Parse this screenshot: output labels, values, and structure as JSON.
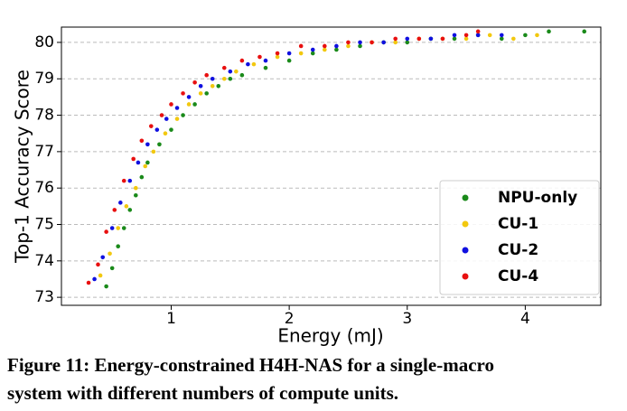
{
  "chart_data": {
    "type": "scatter",
    "xlabel": "Energy (mJ)",
    "ylabel": "Top-1 Accuracy Score",
    "caption": [
      "Figure 11: Energy-constrained H4H-NAS for a single-macro",
      "system with different numbers of compute units."
    ],
    "xlim": [
      0.07,
      4.64
    ],
    "ylim": [
      72.78,
      80.42
    ],
    "xticks": [
      1,
      2,
      3,
      4
    ],
    "yticks": [
      73,
      74,
      75,
      76,
      77,
      78,
      79,
      80
    ],
    "grid": "y",
    "legend": "lower right",
    "series": [
      {
        "name": "NPU-only",
        "color": "#1a8a1a",
        "x": [
          0.45,
          0.5,
          0.55,
          0.6,
          0.65,
          0.7,
          0.75,
          0.8,
          0.9,
          1.0,
          1.1,
          1.2,
          1.3,
          1.4,
          1.5,
          1.6,
          1.8,
          2.0,
          2.2,
          2.4,
          2.6,
          2.8,
          3.0,
          3.2,
          3.4,
          3.6,
          3.8,
          4.0,
          4.2,
          4.5
        ],
        "values": [
          73.3,
          73.8,
          74.4,
          74.9,
          75.4,
          75.8,
          76.3,
          76.7,
          77.2,
          77.6,
          78.0,
          78.3,
          78.6,
          78.8,
          79.0,
          79.1,
          79.3,
          79.5,
          79.7,
          79.8,
          79.9,
          80.0,
          80.0,
          80.1,
          80.1,
          80.2,
          80.1,
          80.2,
          80.3,
          80.3
        ]
      },
      {
        "name": "CU-1",
        "color": "#f2c80f",
        "x": [
          0.4,
          0.48,
          0.55,
          0.62,
          0.7,
          0.78,
          0.85,
          0.95,
          1.05,
          1.15,
          1.25,
          1.35,
          1.45,
          1.55,
          1.7,
          1.9,
          2.1,
          2.3,
          2.5,
          2.7,
          2.9,
          3.1,
          3.3,
          3.5,
          3.7,
          3.9,
          4.1
        ],
        "values": [
          73.6,
          74.2,
          74.9,
          75.5,
          76.0,
          76.6,
          77.0,
          77.5,
          77.9,
          78.3,
          78.6,
          78.8,
          79.0,
          79.2,
          79.4,
          79.6,
          79.7,
          79.8,
          79.9,
          80.0,
          80.0,
          80.1,
          80.1,
          80.1,
          80.2,
          80.1,
          80.2
        ]
      },
      {
        "name": "CU-2",
        "color": "#1010e0",
        "x": [
          0.35,
          0.42,
          0.5,
          0.57,
          0.65,
          0.72,
          0.8,
          0.88,
          0.96,
          1.05,
          1.15,
          1.25,
          1.35,
          1.5,
          1.65,
          1.8,
          2.0,
          2.2,
          2.4,
          2.6,
          2.8,
          3.0,
          3.2,
          3.4,
          3.6,
          3.8
        ],
        "values": [
          73.5,
          74.1,
          74.9,
          75.6,
          76.2,
          76.7,
          77.2,
          77.6,
          77.9,
          78.2,
          78.5,
          78.8,
          79.0,
          79.2,
          79.4,
          79.5,
          79.7,
          79.8,
          79.9,
          80.0,
          80.0,
          80.1,
          80.1,
          80.2,
          80.2,
          80.2
        ]
      },
      {
        "name": "CU-4",
        "color": "#e81010",
        "x": [
          0.3,
          0.38,
          0.45,
          0.52,
          0.6,
          0.68,
          0.75,
          0.83,
          0.92,
          1.0,
          1.1,
          1.2,
          1.3,
          1.45,
          1.6,
          1.75,
          1.9,
          2.1,
          2.3,
          2.5,
          2.7,
          2.9,
          3.1,
          3.3,
          3.5,
          3.6
        ],
        "values": [
          73.4,
          73.9,
          74.8,
          75.4,
          76.2,
          76.8,
          77.3,
          77.7,
          78.0,
          78.3,
          78.6,
          78.9,
          79.1,
          79.3,
          79.5,
          79.6,
          79.7,
          79.9,
          79.9,
          80.0,
          80.0,
          80.1,
          80.1,
          80.1,
          80.2,
          80.3
        ]
      }
    ]
  }
}
